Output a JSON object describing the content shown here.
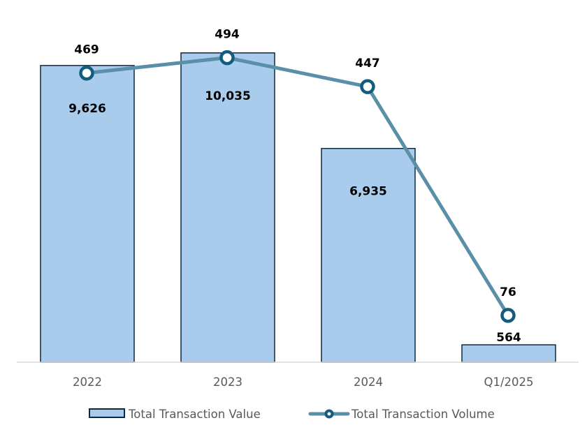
{
  "chart_data": {
    "type": "bar+line",
    "categories": [
      "2022",
      "2023",
      "2024",
      "Q1/2025"
    ],
    "series": [
      {
        "name": "Total Transaction Value",
        "type": "bar",
        "axis": "primary",
        "values": [
          9626,
          10035,
          6935,
          564
        ],
        "labels": [
          "9,626",
          "10,035",
          "6,935",
          "564"
        ],
        "color": "#a9cbec",
        "border": "#0e2841"
      },
      {
        "name": "Total Transaction Volume",
        "type": "line",
        "axis": "secondary",
        "values": [
          469,
          494,
          447,
          76
        ],
        "labels": [
          "469",
          "494",
          "447",
          "76"
        ],
        "color": "#5a8fa8",
        "marker_color": "#145c7e"
      }
    ],
    "primary_ylim": [
      0,
      12000
    ],
    "secondary_ylim": [
      0,
      600
    ],
    "axes_visible": false,
    "grid": false,
    "legend": "bottom"
  }
}
